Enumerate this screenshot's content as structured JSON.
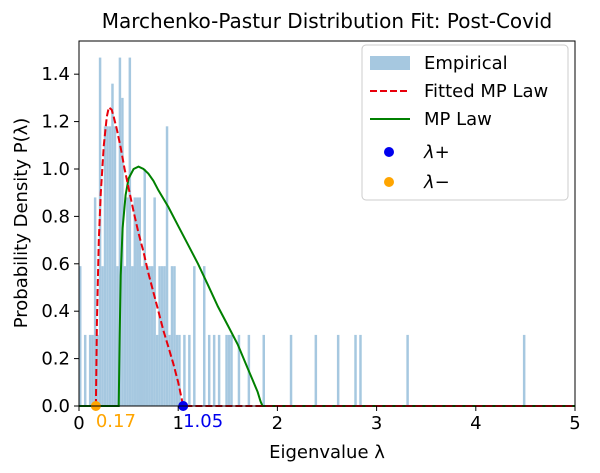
{
  "chart_data": {
    "type": "histogram+line",
    "title": "Marchenko-Pastur Distribution Fit: Post-Covid",
    "xlabel": "Eigenvalue λ",
    "ylabel": "Probability Density P(λ)",
    "xlim": [
      0,
      5
    ],
    "ylim": [
      0,
      1.54
    ],
    "xticks": [
      0,
      1,
      2,
      3,
      4,
      5
    ],
    "yticks": [
      0.0,
      0.2,
      0.4,
      0.6,
      0.8,
      1.0,
      1.2,
      1.4
    ],
    "grid": false,
    "legend_position": "top-right",
    "legend": {
      "empirical": "Empirical",
      "fitted": "Fitted MP Law",
      "mp": "MP Law",
      "lambda_plus": "λ+",
      "lambda_minus": "λ−"
    },
    "colors": {
      "empirical": "#a6c8e0",
      "fitted": "#e8000b",
      "mp": "#008000",
      "lambda_plus": "#0000ee",
      "lambda_minus": "#ffa500"
    },
    "histogram": {
      "bin_width": 0.025,
      "bins": [
        [
          0.0,
          0.59
        ],
        [
          0.05,
          0.3
        ],
        [
          0.1,
          0.3
        ],
        [
          0.125,
          0.3
        ],
        [
          0.15,
          0.88
        ],
        [
          0.175,
          0.3
        ],
        [
          0.2,
          1.47
        ],
        [
          0.225,
          0.59
        ],
        [
          0.25,
          1.18
        ],
        [
          0.275,
          1.18
        ],
        [
          0.3,
          1.18
        ],
        [
          0.325,
          1.36
        ],
        [
          0.35,
          1.18
        ],
        [
          0.375,
          0.59
        ],
        [
          0.4,
          1.47
        ],
        [
          0.425,
          1.3
        ],
        [
          0.45,
          0.59
        ],
        [
          0.475,
          0.88
        ],
        [
          0.5,
          1.47
        ],
        [
          0.525,
          0.59
        ],
        [
          0.55,
          0.88
        ],
        [
          0.575,
          0.88
        ],
        [
          0.6,
          0.88
        ],
        [
          0.625,
          0.59
        ],
        [
          0.65,
          1.0
        ],
        [
          0.675,
          0.59
        ],
        [
          0.7,
          0.59
        ],
        [
          0.725,
          0.59
        ],
        [
          0.75,
          0.88
        ],
        [
          0.775,
          0.3
        ],
        [
          0.8,
          0.59
        ],
        [
          0.825,
          0.59
        ],
        [
          0.85,
          0.59
        ],
        [
          0.875,
          1.18
        ],
        [
          0.9,
          0.3
        ],
        [
          0.925,
          0.59
        ],
        [
          0.95,
          0.59
        ],
        [
          0.975,
          0.3
        ],
        [
          1.0,
          0.3
        ],
        [
          1.05,
          0.3
        ],
        [
          1.1,
          0.3
        ],
        [
          1.15,
          0.59
        ],
        [
          1.25,
          0.59
        ],
        [
          1.3,
          0.3
        ],
        [
          1.35,
          0.3
        ],
        [
          1.4,
          0.3
        ],
        [
          1.475,
          0.3
        ],
        [
          1.5,
          0.3
        ],
        [
          1.525,
          0.3
        ],
        [
          1.6,
          0.3
        ],
        [
          1.7,
          0.3
        ],
        [
          1.85,
          0.3
        ],
        [
          2.125,
          0.3
        ],
        [
          2.375,
          0.3
        ],
        [
          2.6,
          0.3
        ],
        [
          2.775,
          0.3
        ],
        [
          2.825,
          0.3
        ],
        [
          3.3,
          0.3
        ],
        [
          4.475,
          0.3
        ]
      ]
    },
    "fitted_mp": {
      "x": [
        0.17,
        0.18,
        0.19,
        0.2,
        0.22,
        0.25,
        0.28,
        0.3,
        0.33,
        0.35,
        0.38,
        0.42,
        0.46,
        0.5,
        0.55,
        0.6,
        0.65,
        0.7,
        0.75,
        0.8,
        0.85,
        0.9,
        0.95,
        1.0,
        1.02,
        1.04,
        1.05,
        1.5,
        5.0
      ],
      "y": [
        0.0,
        0.35,
        0.52,
        0.7,
        0.9,
        1.1,
        1.22,
        1.26,
        1.25,
        1.22,
        1.17,
        1.09,
        1.0,
        0.92,
        0.82,
        0.73,
        0.65,
        0.56,
        0.48,
        0.4,
        0.32,
        0.25,
        0.18,
        0.1,
        0.06,
        0.02,
        0.0,
        0.0,
        0.0
      ]
    },
    "mp_law": {
      "x": [
        0.0,
        0.4,
        0.41,
        0.42,
        0.44,
        0.47,
        0.5,
        0.55,
        0.6,
        0.65,
        0.7,
        0.75,
        0.8,
        0.9,
        1.0,
        1.1,
        1.2,
        1.3,
        1.4,
        1.5,
        1.6,
        1.7,
        1.75,
        1.8,
        1.83,
        1.85,
        5.0
      ],
      "y": [
        0.0,
        0.0,
        0.3,
        0.55,
        0.75,
        0.89,
        0.96,
        1.0,
        1.01,
        1.0,
        0.98,
        0.95,
        0.91,
        0.84,
        0.76,
        0.68,
        0.6,
        0.51,
        0.42,
        0.34,
        0.26,
        0.16,
        0.11,
        0.06,
        0.02,
        0.0,
        0.0
      ]
    },
    "points": {
      "lambda_plus": {
        "x": 1.05,
        "y": 0,
        "label": "1.05"
      },
      "lambda_minus": {
        "x": 0.17,
        "y": 0,
        "label": "0.17"
      }
    }
  }
}
